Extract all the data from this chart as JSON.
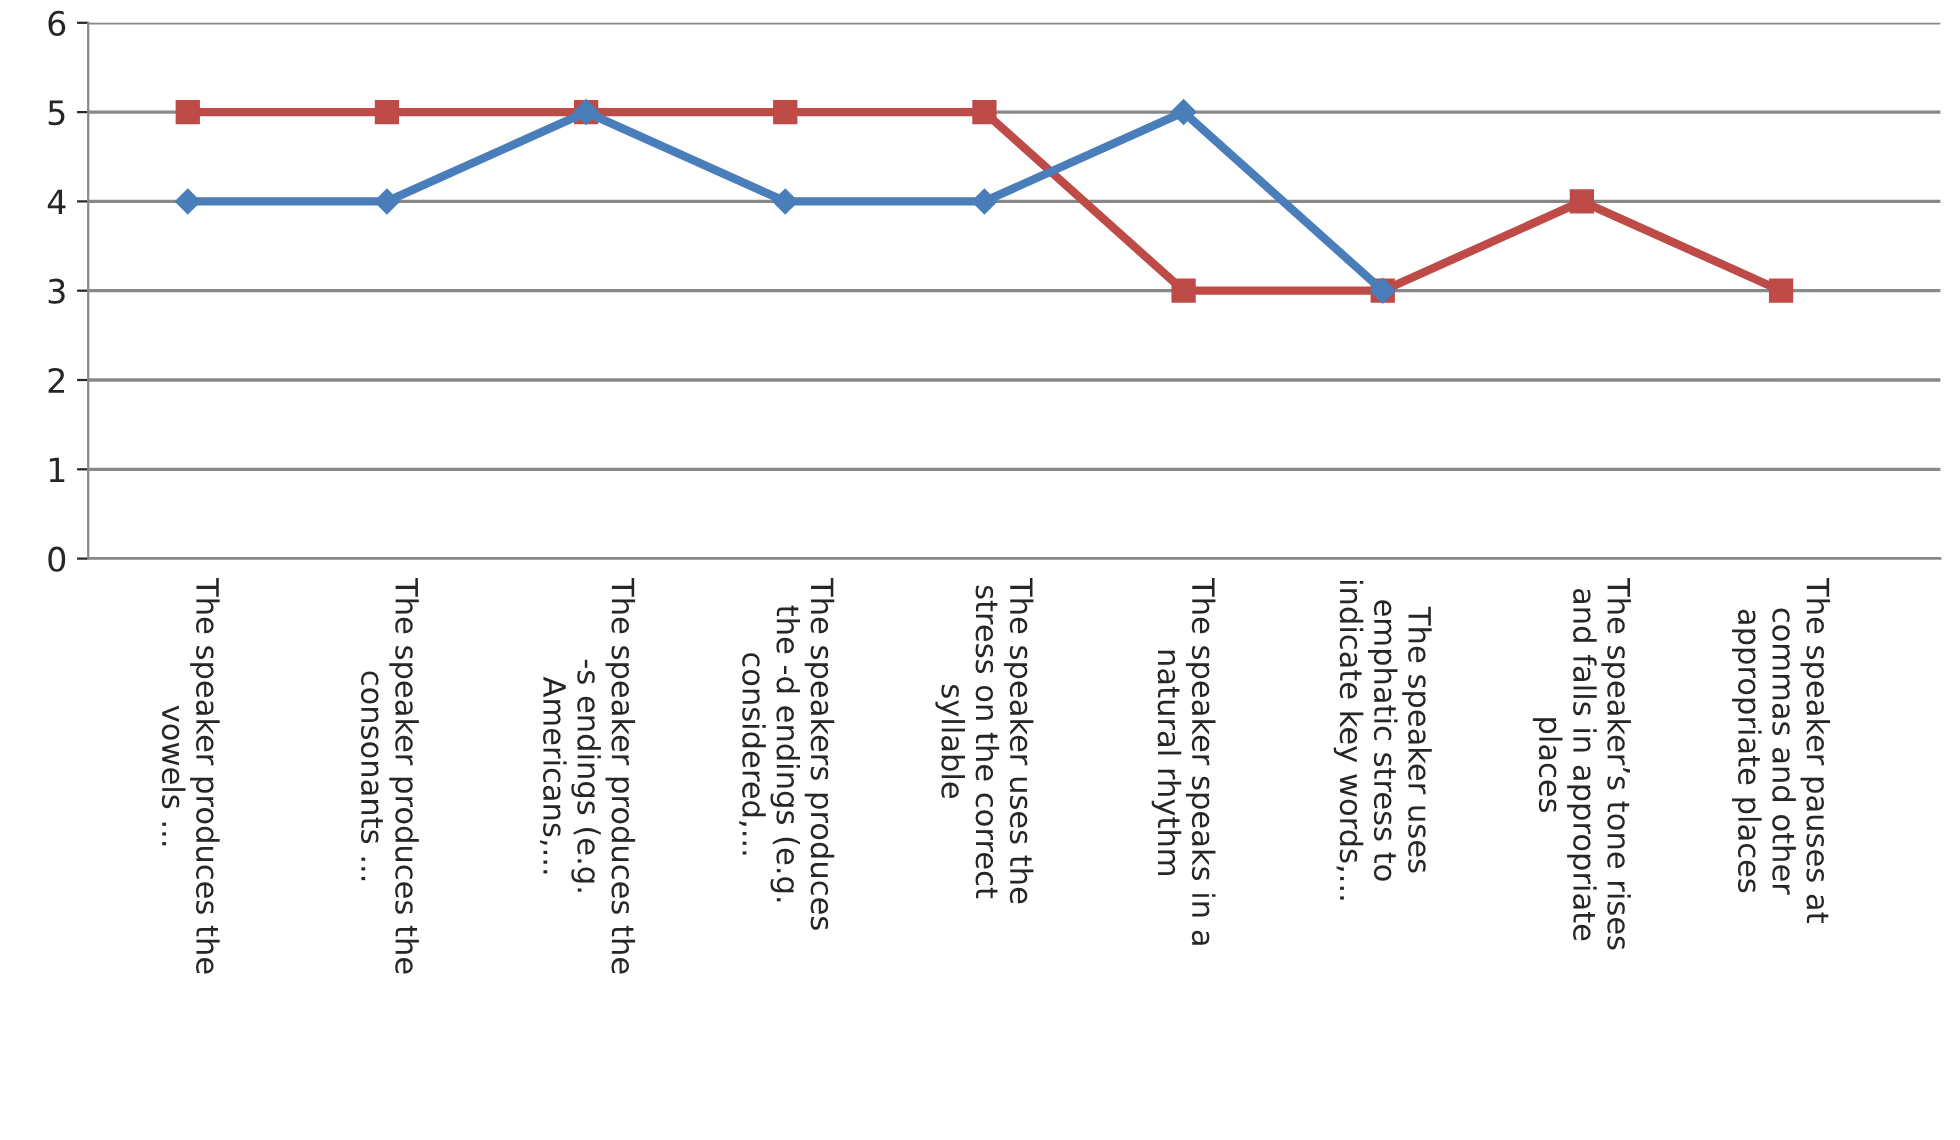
{
  "chart_data": {
    "type": "line",
    "categories": [
      "The speaker produces the\nvowels ...",
      "The speaker produces the\nconsonants ...",
      "The speaker produces the\n-s endings (e.g.\nAmericans,...",
      "The speakers produces\nthe -d endings (e.g.\nconsidered,...",
      "The speaker uses the\nstress on the correct\nsyllable",
      "The speaker speaks in a\nnatural rhythm",
      "The speaker uses\nemphatic stress to\nindicate key words,...",
      "The speaker’s tone rises\nand falls in appropriate\nplaces",
      "The speaker pauses at\ncommas and other\nappropriate places"
    ],
    "series": [
      {
        "color": "#4a7ebb",
        "marker": "diamond",
        "values": [
          4,
          4,
          5,
          4,
          4,
          5,
          3,
          null,
          null
        ]
      },
      {
        "color": "#be4b48",
        "marker": "square",
        "values": [
          5,
          5,
          5,
          5,
          5,
          3,
          3,
          4,
          3
        ]
      }
    ],
    "ylim": [
      0,
      6
    ],
    "yticks": [
      0,
      1,
      2,
      3,
      4,
      5,
      6
    ],
    "grid": "y",
    "legend": false
  }
}
